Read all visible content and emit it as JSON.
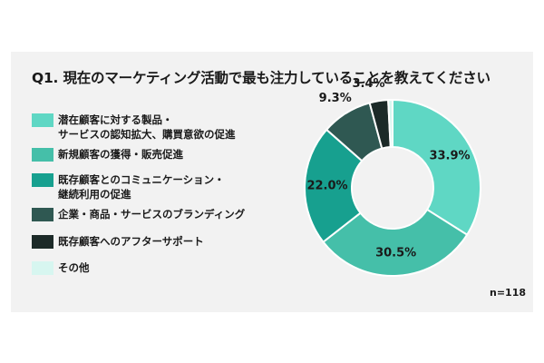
{
  "title": "Q1. 現在のマーケティング活動で最も注力していることを教えてください",
  "n_label": "n=118",
  "colors": {
    "background": "#ffffff",
    "card": "#f2f2f2",
    "slice_border": "#ffffff"
  },
  "chart_data": {
    "type": "pie",
    "donut": true,
    "title": "Q1. 現在のマーケティング活動で最も注力していることを教えてください",
    "legend_placement": "left",
    "series": [
      {
        "name": "潜在顧客に対する製品・\nサービスの認知拡大、購買意欲の促進",
        "value": 33.9,
        "label": "33.9%",
        "color": "#5fd7c4"
      },
      {
        "name": "新規顧客の獲得・販売促進",
        "value": 30.5,
        "label": "30.5%",
        "color": "#45bfa9"
      },
      {
        "name": "既存顧客とのコミュニケーション・\n継続利用の促進",
        "value": 22.0,
        "label": "22.0%",
        "color": "#17a08f"
      },
      {
        "name": "企業・商品・サービスのブランディング",
        "value": 9.3,
        "label": "9.3%",
        "color": "#2f5852"
      },
      {
        "name": "既存顧客へのアフターサポート",
        "value": 3.4,
        "label": "3.4%",
        "color": "#1c2a28"
      },
      {
        "name": "その他",
        "value": 0.8,
        "label": "",
        "color": "#d7f6f0"
      }
    ]
  }
}
